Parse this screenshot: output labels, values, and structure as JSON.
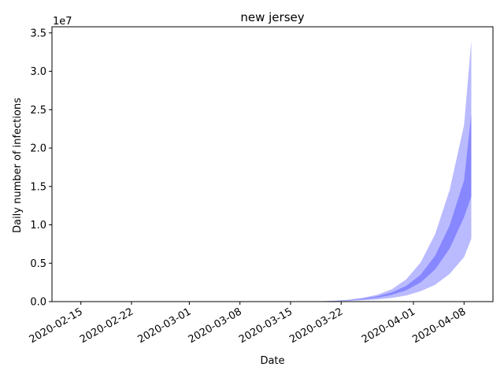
{
  "chart_data": {
    "type": "area",
    "title": "new jersey",
    "xlabel": "Date",
    "ylabel": "Daily number of infections",
    "y_offset_label": "1e7",
    "x_ticks": [
      "2020-02-15",
      "2020-02-22",
      "2020-03-01",
      "2020-03-08",
      "2020-03-15",
      "2020-03-22",
      "2020-04-01",
      "2020-04-08"
    ],
    "y_ticks": [
      "0.0",
      "0.5",
      "1.0",
      "1.5",
      "2.0",
      "2.5",
      "3.0",
      "3.5"
    ],
    "xlim": [
      "2020-02-11",
      "2020-04-12"
    ],
    "ylim": [
      0,
      35800000
    ],
    "grid": false,
    "color": "#0000ff",
    "x": [
      "2020-03-15",
      "2020-03-17",
      "2020-03-19",
      "2020-03-21",
      "2020-03-23",
      "2020-03-25",
      "2020-03-27",
      "2020-03-29",
      "2020-03-31",
      "2020-04-02",
      "2020-04-04",
      "2020-04-06",
      "2020-04-08",
      "2020-04-09"
    ],
    "bands": [
      {
        "lower": [
          0,
          5000,
          15000,
          40000,
          90000,
          170000,
          290000,
          480000,
          800000,
          1350000,
          2200000,
          3600000,
          5800000,
          8200000
        ],
        "upper": [
          0,
          12000,
          40000,
          110000,
          250000,
          500000,
          900000,
          1600000,
          2900000,
          5100000,
          8800000,
          14500000,
          23000000,
          34000000
        ]
      },
      {
        "lower": [
          0,
          8000,
          25000,
          65000,
          150000,
          290000,
          510000,
          880000,
          1480000,
          2500000,
          4200000,
          6900000,
          11000000,
          13700000
        ],
        "upper": [
          0,
          10000,
          32000,
          85000,
          200000,
          390000,
          690000,
          1200000,
          2050000,
          3500000,
          6000000,
          9900000,
          15800000,
          24500000
        ]
      }
    ]
  }
}
